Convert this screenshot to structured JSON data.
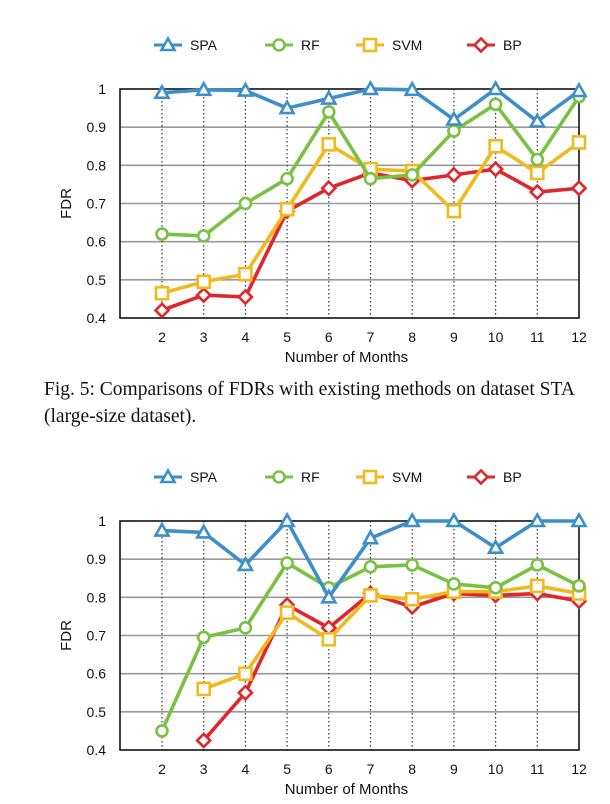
{
  "figure1": {
    "caption": "Fig. 5: Comparisons of FDRs with existing methods on dataset STA (large-size dataset).",
    "chart_data": {
      "type": "line",
      "x": [
        2,
        3,
        4,
        5,
        6,
        7,
        8,
        9,
        10,
        11,
        12
      ],
      "xlabel": "Number of Months",
      "ylabel": "FDR",
      "ylim": [
        0.4,
        1.0
      ],
      "yticks": [
        0.4,
        0.5,
        0.6,
        0.7,
        0.8,
        0.9,
        1
      ],
      "ytick_labels": [
        "0.4",
        "0.5",
        "0.6",
        "0.7",
        "0.8",
        "0.9",
        "1"
      ],
      "grid": "vertical dotted, horizontal gray",
      "legend": "top",
      "series": [
        {
          "name": "SPA",
          "color": "#3d8ec9",
          "marker": "triangle",
          "values": [
            0.99,
            0.998,
            0.996,
            0.95,
            0.975,
            1.0,
            0.998,
            0.92,
            1.0,
            0.915,
            0.995
          ]
        },
        {
          "name": "RF",
          "color": "#79c143",
          "marker": "circle",
          "values": [
            0.62,
            0.615,
            0.7,
            0.765,
            0.94,
            0.765,
            0.775,
            0.89,
            0.96,
            0.815,
            0.98
          ]
        },
        {
          "name": "SVM",
          "color": "#f2b91e",
          "marker": "square",
          "values": [
            0.465,
            0.495,
            0.515,
            0.685,
            0.855,
            0.79,
            0.785,
            0.68,
            0.85,
            0.78,
            0.86
          ]
        },
        {
          "name": "BP",
          "color": "#e0262b",
          "marker": "diamond",
          "values": [
            0.42,
            0.46,
            0.455,
            0.68,
            0.74,
            0.78,
            0.76,
            0.775,
            0.79,
            0.73,
            0.74
          ]
        }
      ]
    }
  },
  "figure2": {
    "chart_data": {
      "type": "line",
      "x": [
        2,
        3,
        4,
        5,
        6,
        7,
        8,
        9,
        10,
        11,
        12
      ],
      "xlabel": "Number of Months",
      "ylabel": "FDR",
      "ylim": [
        0.4,
        1.0
      ],
      "yticks": [
        0.4,
        0.5,
        0.6,
        0.7,
        0.8,
        0.9,
        1
      ],
      "ytick_labels": [
        "0.4",
        "0.5",
        "0.6",
        "0.7",
        "0.8",
        "0.9",
        "1"
      ],
      "grid": "vertical dotted, horizontal gray",
      "legend": "top",
      "series": [
        {
          "name": "SPA",
          "color": "#3d8ec9",
          "marker": "triangle",
          "values": [
            0.975,
            0.97,
            0.885,
            1.0,
            0.8,
            0.955,
            1.0,
            1.0,
            0.93,
            1.0,
            1.0
          ]
        },
        {
          "name": "RF",
          "color": "#79c143",
          "marker": "circle",
          "values": [
            0.45,
            0.695,
            0.72,
            0.89,
            0.825,
            0.88,
            0.885,
            0.835,
            0.825,
            0.885,
            0.83
          ]
        },
        {
          "name": "SVM",
          "color": "#f2b91e",
          "marker": "square",
          "values": [
            null,
            0.56,
            0.6,
            0.76,
            0.69,
            0.805,
            0.795,
            0.815,
            0.815,
            0.83,
            0.81
          ]
        },
        {
          "name": "BP",
          "color": "#e0262b",
          "marker": "diamond",
          "values": [
            null,
            0.425,
            0.55,
            0.78,
            0.72,
            0.81,
            0.775,
            0.81,
            0.805,
            0.81,
            0.79
          ]
        }
      ]
    }
  }
}
